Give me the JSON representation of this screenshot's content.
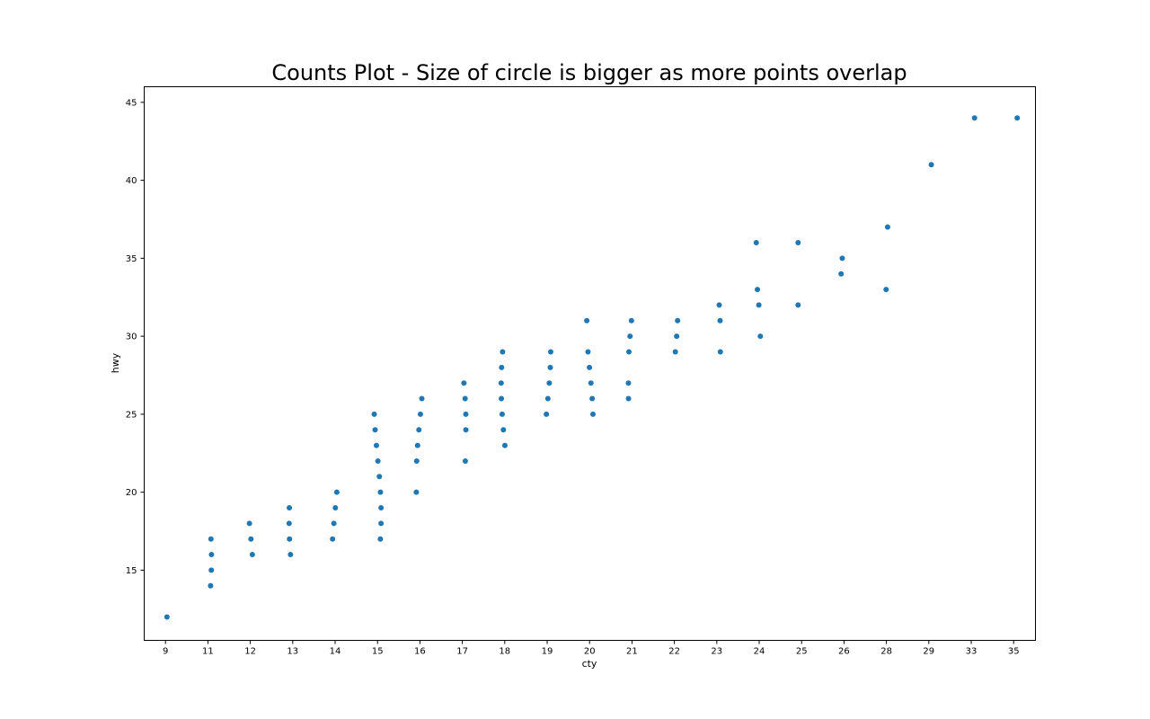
{
  "chart_data": {
    "type": "scatter",
    "title": "Counts Plot - Size of circle is bigger as more points overlap",
    "xlabel": "cty",
    "ylabel": "hwy",
    "x_categories": [
      "9",
      "11",
      "12",
      "13",
      "14",
      "15",
      "16",
      "17",
      "18",
      "19",
      "20",
      "21",
      "22",
      "23",
      "24",
      "25",
      "26",
      "28",
      "29",
      "33",
      "35"
    ],
    "yticks": [
      15,
      20,
      25,
      30,
      35,
      40,
      45
    ],
    "ylim": [
      10.5,
      46.0
    ],
    "grid": false,
    "legend": "none",
    "point_color": "#1f77b4",
    "points": [
      {
        "x": "9",
        "y": 12
      },
      {
        "x": "11",
        "y": 14
      },
      {
        "x": "11",
        "y": 15
      },
      {
        "x": "11",
        "y": 16
      },
      {
        "x": "11",
        "y": 17
      },
      {
        "x": "12",
        "y": 16
      },
      {
        "x": "12",
        "y": 17
      },
      {
        "x": "12",
        "y": 18
      },
      {
        "x": "13",
        "y": 16
      },
      {
        "x": "13",
        "y": 17
      },
      {
        "x": "13",
        "y": 18
      },
      {
        "x": "13",
        "y": 19
      },
      {
        "x": "14",
        "y": 17
      },
      {
        "x": "14",
        "y": 18
      },
      {
        "x": "14",
        "y": 19
      },
      {
        "x": "14",
        "y": 20
      },
      {
        "x": "15",
        "y": 17
      },
      {
        "x": "15",
        "y": 18
      },
      {
        "x": "15",
        "y": 19
      },
      {
        "x": "15",
        "y": 20
      },
      {
        "x": "15",
        "y": 21
      },
      {
        "x": "15",
        "y": 22
      },
      {
        "x": "15",
        "y": 23
      },
      {
        "x": "15",
        "y": 24
      },
      {
        "x": "15",
        "y": 25
      },
      {
        "x": "16",
        "y": 20
      },
      {
        "x": "16",
        "y": 22
      },
      {
        "x": "16",
        "y": 23
      },
      {
        "x": "16",
        "y": 24
      },
      {
        "x": "16",
        "y": 25
      },
      {
        "x": "16",
        "y": 26
      },
      {
        "x": "17",
        "y": 22
      },
      {
        "x": "17",
        "y": 24
      },
      {
        "x": "17",
        "y": 25
      },
      {
        "x": "17",
        "y": 26
      },
      {
        "x": "17",
        "y": 27
      },
      {
        "x": "18",
        "y": 23
      },
      {
        "x": "18",
        "y": 24
      },
      {
        "x": "18",
        "y": 25
      },
      {
        "x": "18",
        "y": 26
      },
      {
        "x": "18",
        "y": 27
      },
      {
        "x": "18",
        "y": 28
      },
      {
        "x": "18",
        "y": 29
      },
      {
        "x": "19",
        "y": 25
      },
      {
        "x": "19",
        "y": 26
      },
      {
        "x": "19",
        "y": 27
      },
      {
        "x": "19",
        "y": 28
      },
      {
        "x": "19",
        "y": 29
      },
      {
        "x": "20",
        "y": 25
      },
      {
        "x": "20",
        "y": 26
      },
      {
        "x": "20",
        "y": 27
      },
      {
        "x": "20",
        "y": 28
      },
      {
        "x": "20",
        "y": 29
      },
      {
        "x": "20",
        "y": 31
      },
      {
        "x": "21",
        "y": 26
      },
      {
        "x": "21",
        "y": 27
      },
      {
        "x": "21",
        "y": 29
      },
      {
        "x": "21",
        "y": 30
      },
      {
        "x": "21",
        "y": 31
      },
      {
        "x": "22",
        "y": 29
      },
      {
        "x": "22",
        "y": 30
      },
      {
        "x": "22",
        "y": 31
      },
      {
        "x": "23",
        "y": 29
      },
      {
        "x": "23",
        "y": 31
      },
      {
        "x": "23",
        "y": 32
      },
      {
        "x": "24",
        "y": 30
      },
      {
        "x": "24",
        "y": 32
      },
      {
        "x": "24",
        "y": 33
      },
      {
        "x": "24",
        "y": 36
      },
      {
        "x": "25",
        "y": 32
      },
      {
        "x": "25",
        "y": 36
      },
      {
        "x": "26",
        "y": 34
      },
      {
        "x": "26",
        "y": 35
      },
      {
        "x": "28",
        "y": 33
      },
      {
        "x": "28",
        "y": 37
      },
      {
        "x": "29",
        "y": 41
      },
      {
        "x": "33",
        "y": 44
      },
      {
        "x": "35",
        "y": 44
      }
    ]
  }
}
